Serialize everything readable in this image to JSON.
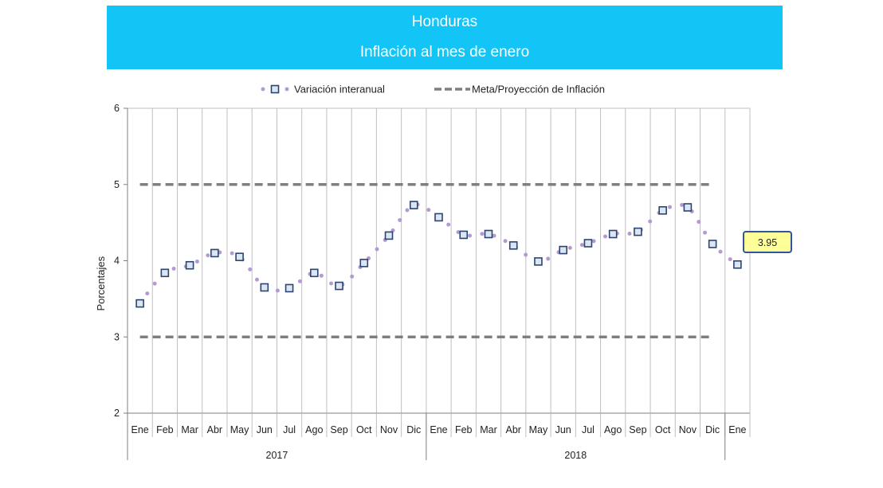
{
  "header": {
    "title": "Honduras",
    "subtitle": "Inflación al mes de enero"
  },
  "colors": {
    "banner": "#13C4F7",
    "series_dots": "#B49AD0",
    "marker_border": "#2B4570",
    "marker_fill": "#DCE6F2",
    "target_line": "#7F7F7F",
    "callout_fill": "#FFFF99",
    "callout_border": "#2F5597"
  },
  "chart_data": {
    "type": "line",
    "ylabel": "Porcentajes",
    "ylim": [
      2,
      6
    ],
    "yticks": [
      2,
      3,
      4,
      5,
      6
    ],
    "grid": true,
    "legend_position": "top",
    "categories": [
      "Ene",
      "Feb",
      "Mar",
      "Abr",
      "May",
      "Jun",
      "Jul",
      "Ago",
      "Sep",
      "Oct",
      "Nov",
      "Dic",
      "Ene",
      "Feb",
      "Mar",
      "Abr",
      "May",
      "Jun",
      "Jul",
      "Ago",
      "Sep",
      "Oct",
      "Nov",
      "Dic",
      "Ene"
    ],
    "years": [
      {
        "label": "2017",
        "start": 0,
        "end": 11
      },
      {
        "label": "2018",
        "start": 12,
        "end": 23
      }
    ],
    "series": [
      {
        "name": "Variación interanual",
        "style": "dotted-with-square-markers",
        "values": [
          3.44,
          3.84,
          3.94,
          4.1,
          4.05,
          3.65,
          3.64,
          3.84,
          3.67,
          3.97,
          4.33,
          4.73,
          4.57,
          4.34,
          4.35,
          4.2,
          3.99,
          4.14,
          4.23,
          4.35,
          4.38,
          4.66,
          4.7,
          4.22,
          3.95
        ]
      },
      {
        "name": "Meta/Proyección de Inflación",
        "style": "dashed",
        "bands": [
          3,
          5
        ],
        "x_end_index": 23
      }
    ],
    "annotation": {
      "text": "3.95",
      "point_index": 24
    }
  }
}
